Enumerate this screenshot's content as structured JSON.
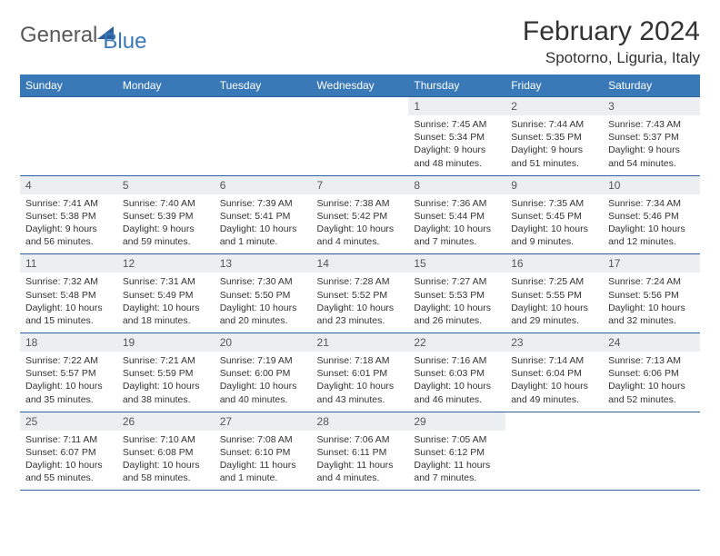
{
  "brand": {
    "part1": "General",
    "part2": "Blue"
  },
  "title": "February 2024",
  "location": "Spotorno, Liguria, Italy",
  "colors": {
    "header_bg": "#3a79b7",
    "border": "#2d5f9e",
    "daynum_bg": "#eceff1",
    "text": "#333333",
    "logo_gray": "#5a5a5a"
  },
  "dayNames": [
    "Sunday",
    "Monday",
    "Tuesday",
    "Wednesday",
    "Thursday",
    "Friday",
    "Saturday"
  ],
  "weeks": [
    [
      null,
      null,
      null,
      null,
      {
        "n": "1",
        "sr": "7:45 AM",
        "ss": "5:34 PM",
        "dl": "9 hours and 48 minutes."
      },
      {
        "n": "2",
        "sr": "7:44 AM",
        "ss": "5:35 PM",
        "dl": "9 hours and 51 minutes."
      },
      {
        "n": "3",
        "sr": "7:43 AM",
        "ss": "5:37 PM",
        "dl": "9 hours and 54 minutes."
      }
    ],
    [
      {
        "n": "4",
        "sr": "7:41 AM",
        "ss": "5:38 PM",
        "dl": "9 hours and 56 minutes."
      },
      {
        "n": "5",
        "sr": "7:40 AM",
        "ss": "5:39 PM",
        "dl": "9 hours and 59 minutes."
      },
      {
        "n": "6",
        "sr": "7:39 AM",
        "ss": "5:41 PM",
        "dl": "10 hours and 1 minute."
      },
      {
        "n": "7",
        "sr": "7:38 AM",
        "ss": "5:42 PM",
        "dl": "10 hours and 4 minutes."
      },
      {
        "n": "8",
        "sr": "7:36 AM",
        "ss": "5:44 PM",
        "dl": "10 hours and 7 minutes."
      },
      {
        "n": "9",
        "sr": "7:35 AM",
        "ss": "5:45 PM",
        "dl": "10 hours and 9 minutes."
      },
      {
        "n": "10",
        "sr": "7:34 AM",
        "ss": "5:46 PM",
        "dl": "10 hours and 12 minutes."
      }
    ],
    [
      {
        "n": "11",
        "sr": "7:32 AM",
        "ss": "5:48 PM",
        "dl": "10 hours and 15 minutes."
      },
      {
        "n": "12",
        "sr": "7:31 AM",
        "ss": "5:49 PM",
        "dl": "10 hours and 18 minutes."
      },
      {
        "n": "13",
        "sr": "7:30 AM",
        "ss": "5:50 PM",
        "dl": "10 hours and 20 minutes."
      },
      {
        "n": "14",
        "sr": "7:28 AM",
        "ss": "5:52 PM",
        "dl": "10 hours and 23 minutes."
      },
      {
        "n": "15",
        "sr": "7:27 AM",
        "ss": "5:53 PM",
        "dl": "10 hours and 26 minutes."
      },
      {
        "n": "16",
        "sr": "7:25 AM",
        "ss": "5:55 PM",
        "dl": "10 hours and 29 minutes."
      },
      {
        "n": "17",
        "sr": "7:24 AM",
        "ss": "5:56 PM",
        "dl": "10 hours and 32 minutes."
      }
    ],
    [
      {
        "n": "18",
        "sr": "7:22 AM",
        "ss": "5:57 PM",
        "dl": "10 hours and 35 minutes."
      },
      {
        "n": "19",
        "sr": "7:21 AM",
        "ss": "5:59 PM",
        "dl": "10 hours and 38 minutes."
      },
      {
        "n": "20",
        "sr": "7:19 AM",
        "ss": "6:00 PM",
        "dl": "10 hours and 40 minutes."
      },
      {
        "n": "21",
        "sr": "7:18 AM",
        "ss": "6:01 PM",
        "dl": "10 hours and 43 minutes."
      },
      {
        "n": "22",
        "sr": "7:16 AM",
        "ss": "6:03 PM",
        "dl": "10 hours and 46 minutes."
      },
      {
        "n": "23",
        "sr": "7:14 AM",
        "ss": "6:04 PM",
        "dl": "10 hours and 49 minutes."
      },
      {
        "n": "24",
        "sr": "7:13 AM",
        "ss": "6:06 PM",
        "dl": "10 hours and 52 minutes."
      }
    ],
    [
      {
        "n": "25",
        "sr": "7:11 AM",
        "ss": "6:07 PM",
        "dl": "10 hours and 55 minutes."
      },
      {
        "n": "26",
        "sr": "7:10 AM",
        "ss": "6:08 PM",
        "dl": "10 hours and 58 minutes."
      },
      {
        "n": "27",
        "sr": "7:08 AM",
        "ss": "6:10 PM",
        "dl": "11 hours and 1 minute."
      },
      {
        "n": "28",
        "sr": "7:06 AM",
        "ss": "6:11 PM",
        "dl": "11 hours and 4 minutes."
      },
      {
        "n": "29",
        "sr": "7:05 AM",
        "ss": "6:12 PM",
        "dl": "11 hours and 7 minutes."
      },
      null,
      null
    ]
  ],
  "labels": {
    "sunrise": "Sunrise:",
    "sunset": "Sunset:",
    "daylight": "Daylight:"
  }
}
